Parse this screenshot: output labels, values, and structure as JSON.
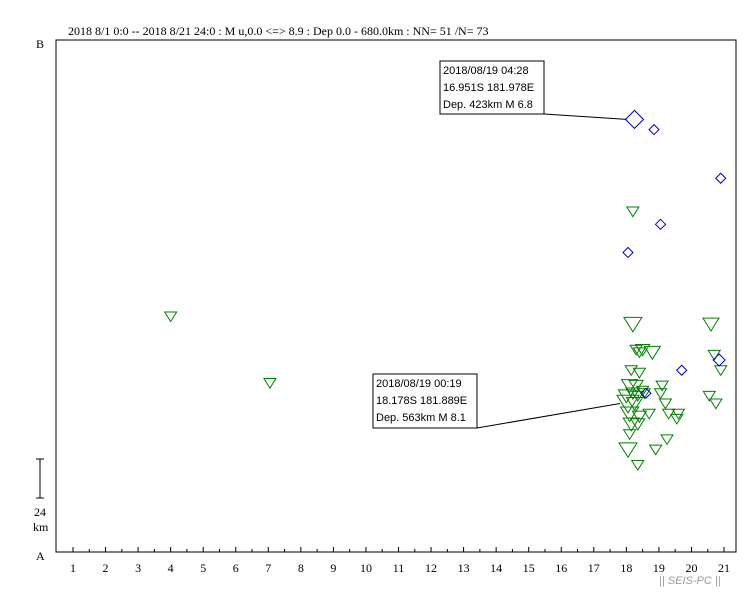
{
  "header": "2018 8/1 0:0 -- 2018 8/21 24:0  : M u,0.0 <=> 8.9   : Dep 0.0 - 680.0km :  NN= 51 /N= 73",
  "axis_letters": {
    "top": "B",
    "bottom": "A"
  },
  "scale_bar": {
    "value": "24",
    "unit": "km"
  },
  "watermark": "|| SEIS-PC ||",
  "colors": {
    "triangle": "#008000",
    "diamond": "#0000cc",
    "axis": "#000000"
  },
  "chart_data": {
    "type": "scatter",
    "x_ticks": [
      "1",
      "2",
      "3",
      "4",
      "5",
      "6",
      "7",
      "8",
      "9",
      "10",
      "11",
      "12",
      "13",
      "14",
      "15",
      "16",
      "17",
      "18",
      "19",
      "20",
      "21"
    ],
    "xlim": [
      0.5,
      21.5
    ],
    "ylim": [
      0,
      1
    ],
    "series": [
      {
        "marker": "triangle-down",
        "points": [
          {
            "x": 4.0,
            "y": 0.46,
            "s": 6
          },
          {
            "x": 7.05,
            "y": 0.33,
            "s": 6
          },
          {
            "x": 18.2,
            "y": 0.665,
            "s": 6
          },
          {
            "x": 18.2,
            "y": 0.445,
            "s": 9
          },
          {
            "x": 18.3,
            "y": 0.395,
            "s": 6
          },
          {
            "x": 18.4,
            "y": 0.39,
            "s": 6
          },
          {
            "x": 18.5,
            "y": 0.395,
            "s": 7
          },
          {
            "x": 18.8,
            "y": 0.39,
            "s": 8
          },
          {
            "x": 18.15,
            "y": 0.355,
            "s": 6
          },
          {
            "x": 18.4,
            "y": 0.35,
            "s": 6
          },
          {
            "x": 18.1,
            "y": 0.325,
            "s": 8
          },
          {
            "x": 18.3,
            "y": 0.325,
            "s": 7
          },
          {
            "x": 18.5,
            "y": 0.315,
            "s": 6
          },
          {
            "x": 18.0,
            "y": 0.305,
            "s": 8
          },
          {
            "x": 18.2,
            "y": 0.31,
            "s": 7
          },
          {
            "x": 18.35,
            "y": 0.305,
            "s": 6
          },
          {
            "x": 18.55,
            "y": 0.31,
            "s": 6
          },
          {
            "x": 18.05,
            "y": 0.29,
            "s": 11
          },
          {
            "x": 18.25,
            "y": 0.29,
            "s": 8
          },
          {
            "x": 18.1,
            "y": 0.27,
            "s": 9
          },
          {
            "x": 18.4,
            "y": 0.265,
            "s": 7
          },
          {
            "x": 18.7,
            "y": 0.27,
            "s": 6
          },
          {
            "x": 18.15,
            "y": 0.25,
            "s": 8
          },
          {
            "x": 18.35,
            "y": 0.25,
            "s": 7
          },
          {
            "x": 18.1,
            "y": 0.23,
            "s": 6
          },
          {
            "x": 18.05,
            "y": 0.2,
            "s": 9
          },
          {
            "x": 18.35,
            "y": 0.17,
            "s": 6
          },
          {
            "x": 19.1,
            "y": 0.325,
            "s": 6
          },
          {
            "x": 19.2,
            "y": 0.29,
            "s": 6
          },
          {
            "x": 19.3,
            "y": 0.27,
            "s": 6
          },
          {
            "x": 19.6,
            "y": 0.27,
            "s": 6
          },
          {
            "x": 19.55,
            "y": 0.26,
            "s": 6
          },
          {
            "x": 19.05,
            "y": 0.31,
            "s": 6
          },
          {
            "x": 19.25,
            "y": 0.22,
            "s": 6
          },
          {
            "x": 20.6,
            "y": 0.445,
            "s": 8
          },
          {
            "x": 20.7,
            "y": 0.385,
            "s": 6
          },
          {
            "x": 20.9,
            "y": 0.355,
            "s": 6
          },
          {
            "x": 20.55,
            "y": 0.305,
            "s": 6
          },
          {
            "x": 20.75,
            "y": 0.29,
            "s": 6
          },
          {
            "x": 18.9,
            "y": 0.2,
            "s": 6
          }
        ]
      },
      {
        "marker": "diamond",
        "points": [
          {
            "x": 18.25,
            "y": 0.845,
            "s": 9
          },
          {
            "x": 18.85,
            "y": 0.825,
            "s": 5
          },
          {
            "x": 20.9,
            "y": 0.73,
            "s": 5
          },
          {
            "x": 19.05,
            "y": 0.64,
            "s": 5
          },
          {
            "x": 18.05,
            "y": 0.585,
            "s": 5
          },
          {
            "x": 20.85,
            "y": 0.375,
            "s": 6
          },
          {
            "x": 19.7,
            "y": 0.355,
            "s": 5
          },
          {
            "x": 18.6,
            "y": 0.31,
            "s": 5
          }
        ]
      }
    ],
    "annotations": [
      {
        "lines": [
          "2018/08/19 04:28",
          "16.951S  181.978E",
          "Dep. 423km    M 6.8"
        ],
        "target": {
          "x": 18.25,
          "y": 0.845
        }
      },
      {
        "lines": [
          "2018/08/19 00:19",
          "18.178S  181.889E",
          "Dep. 563km    M 8.1"
        ],
        "target": {
          "x": 18.05,
          "y": 0.29
        }
      }
    ]
  }
}
